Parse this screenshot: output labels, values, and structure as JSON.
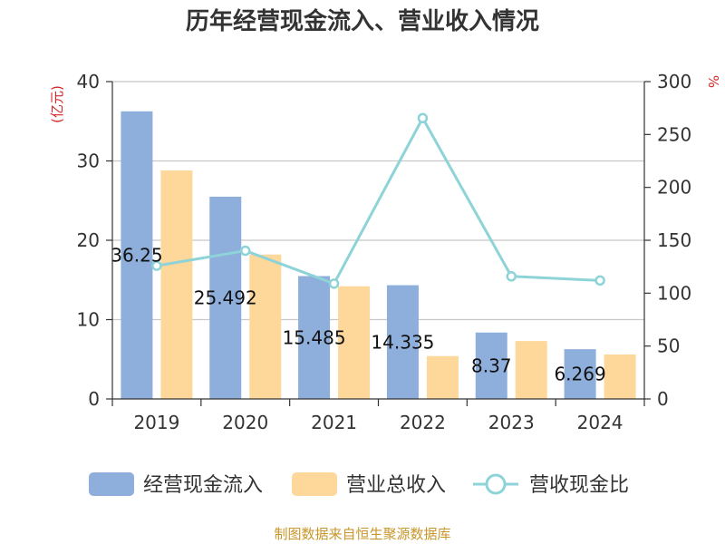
{
  "chart_data": {
    "type": "bar",
    "title": "历年经营现金流入、营业收入情况",
    "categories": [
      "2019",
      "2020",
      "2021",
      "2022",
      "2023",
      "2024"
    ],
    "series": [
      {
        "name": "经营现金流入",
        "type": "bar",
        "axis": "left",
        "color": "#8eaedb",
        "values": [
          36.25,
          25.492,
          15.485,
          14.335,
          8.37,
          6.269
        ]
      },
      {
        "name": "营业总收入",
        "type": "bar",
        "axis": "left",
        "color": "#fdd89a",
        "values": [
          28.8,
          18.2,
          14.2,
          5.4,
          7.3,
          5.6
        ]
      },
      {
        "name": "营收现金比",
        "type": "line",
        "axis": "right",
        "color": "#8dd3d8",
        "values": [
          125.9,
          140.1,
          109.0,
          265.5,
          115.9,
          112.0
        ]
      }
    ],
    "data_labels": [
      "36.25",
      "25.492",
      "15.485",
      "14.335",
      "8.37",
      "6.269"
    ],
    "y_left": {
      "label": "(亿元)",
      "ylim": [
        0,
        40
      ],
      "ticks": [
        "0",
        "10",
        "20",
        "30",
        "40"
      ]
    },
    "y_right": {
      "label": "%",
      "ylim": [
        0,
        300
      ],
      "ticks": [
        "0",
        "50",
        "100",
        "150",
        "200",
        "250",
        "300"
      ]
    },
    "grid": true,
    "legend": "bottom"
  },
  "source": "制图数据来自恒生聚源数据库"
}
